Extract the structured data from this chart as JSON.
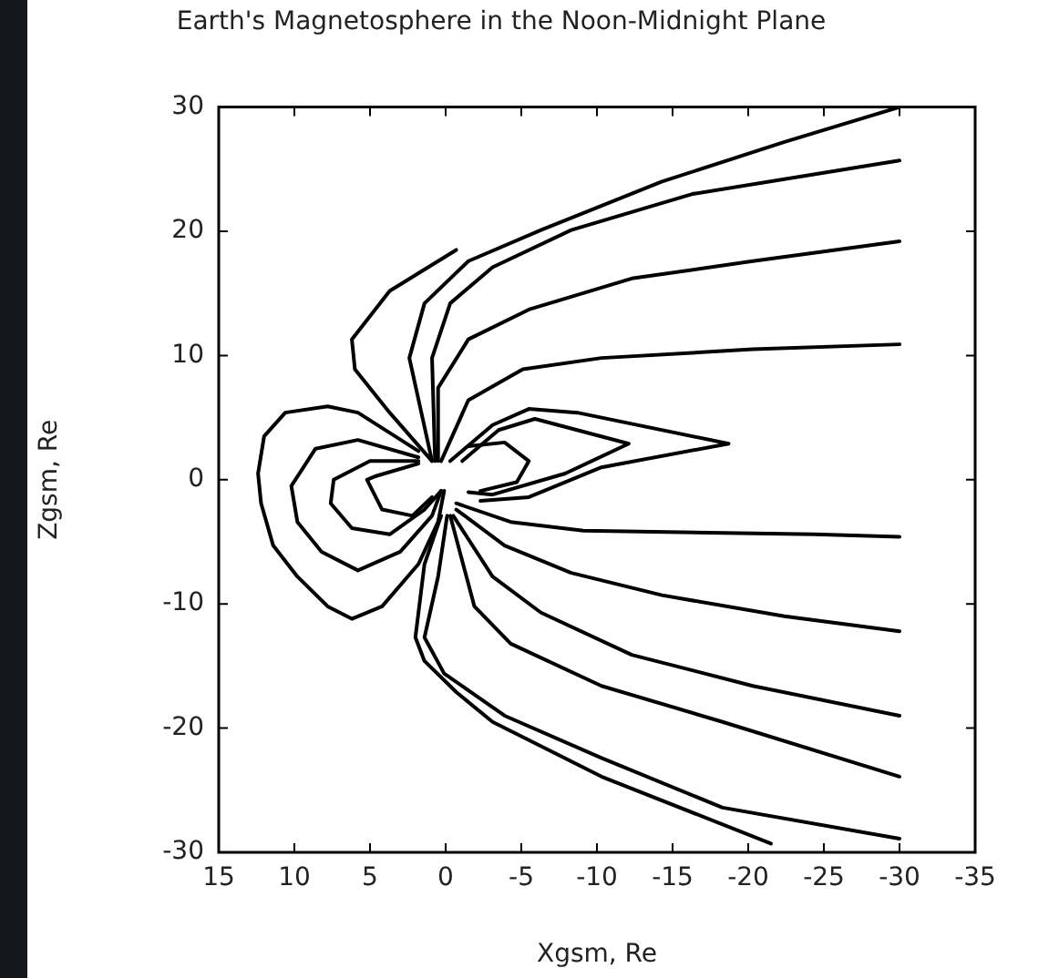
{
  "chart_data": {
    "type": "line",
    "title": "Earth's Magnetosphere in the Noon-Midnight Plane",
    "xlabel": "Xgsm, Re",
    "ylabel": "Zgsm, Re",
    "xlim": [
      15,
      -35
    ],
    "ylim": [
      -30,
      30
    ],
    "xticks": [
      15,
      10,
      5,
      0,
      -5,
      -10,
      -15,
      -20,
      -25,
      -30,
      -35
    ],
    "yticks": [
      -30,
      -20,
      -10,
      0,
      10,
      20,
      30
    ],
    "grid": false,
    "legend": false,
    "marker": "none",
    "line_style": "solid",
    "series": [
      {
        "color": "#000000",
        "x": [
          0.9,
          3.7,
          6.0,
          6.2,
          3.7,
          -0.7
        ],
        "values": [
          1.5,
          5.4,
          8.9,
          11.3,
          15.2,
          18.5
        ]
      },
      {
        "color": "#000000",
        "x": [
          0.9,
          2.4,
          1.4,
          -1.5,
          -6.3,
          -14.3,
          -22.4,
          -30
        ],
        "values": [
          1.5,
          9.8,
          14.2,
          17.6,
          20.1,
          24,
          27.2,
          30
        ]
      },
      {
        "color": "#000000",
        "x": [
          0.7,
          0.9,
          -0.3,
          -3.1,
          -8.3,
          -16.3,
          -30
        ],
        "values": [
          1.5,
          9.8,
          14.2,
          17.1,
          20.1,
          23,
          25.7
        ]
      },
      {
        "color": "#000000",
        "x": [
          0.5,
          0.5,
          -1.5,
          -5.5,
          -12.3,
          -20.3,
          -30
        ],
        "values": [
          1.5,
          7.4,
          11.3,
          13.7,
          16.2,
          17.6,
          19.2
        ]
      },
      {
        "color": "#000000",
        "x": [
          0.3,
          -1.5,
          -5.1,
          -10.3,
          -20.3,
          -30
        ],
        "values": [
          1.5,
          6.4,
          8.9,
          9.8,
          10.5,
          10.9
        ]
      },
      {
        "color": "#000000",
        "x": [
          -0.3,
          -3.1,
          -5.5,
          -8.7,
          -18.7,
          -10.3,
          -5.5,
          -2.3
        ],
        "values": [
          1.5,
          4.4,
          5.7,
          5.4,
          2.9,
          1,
          -1.4,
          -1.7
        ]
      },
      {
        "color": "#000000",
        "x": [
          -1.1,
          -3.5,
          -5.9,
          -12.1,
          -7.9,
          -3.1,
          -1.5
        ],
        "values": [
          1.5,
          4,
          4.9,
          2.9,
          0.5,
          -1.2,
          -1
        ]
      },
      {
        "color": "#000000",
        "x": [
          -1.5,
          -3.9,
          -5.5,
          -4.7,
          -2.3
        ],
        "values": [
          2.7,
          3,
          1.5,
          -0.2,
          -0.9
        ]
      },
      {
        "color": "#000000",
        "x": [
          1.8,
          5.8,
          7.8,
          10.6,
          12,
          12.4,
          12.2,
          11.4,
          9.8,
          7.8,
          6.2,
          4.2,
          1.8,
          0.5,
          0.1
        ],
        "values": [
          2.3,
          5.4,
          5.9,
          5.4,
          3.5,
          0.5,
          -1.9,
          -5.3,
          -7.8,
          -10.2,
          -11.2,
          -10.2,
          -6.8,
          -3.4,
          -0.9
        ]
      },
      {
        "color": "#000000",
        "x": [
          1.8,
          5.8,
          8.6,
          10.2,
          9.8,
          8.2,
          5.8,
          3,
          0.9,
          0.3
        ],
        "values": [
          1.8,
          3.2,
          2.5,
          -0.5,
          -3.4,
          -5.8,
          -7.3,
          -5.8,
          -2.9,
          -0.9
        ]
      },
      {
        "color": "#000000",
        "x": [
          1.8,
          5,
          7.4,
          7.6,
          6.2,
          3.7,
          1.4,
          0.3
        ],
        "values": [
          1.5,
          1.5,
          0,
          -1.9,
          -3.9,
          -4.4,
          -2.4,
          -0.9
        ]
      },
      {
        "color": "#000000",
        "x": [
          1.8,
          4.6,
          5.2,
          4.2,
          2.2,
          0.9
        ],
        "values": [
          1.3,
          0.3,
          0,
          -2.4,
          -2.9,
          -1.4
        ]
      },
      {
        "color": "#000000",
        "x": [
          -0.7,
          -4.3,
          -9.1,
          -24.4,
          -30
        ],
        "values": [
          -1.9,
          -3.4,
          -4.1,
          -4.4,
          -4.6
        ]
      },
      {
        "color": "#000000",
        "x": [
          -0.7,
          -3.9,
          -8.3,
          -14.3,
          -22.4,
          -30
        ],
        "values": [
          -2.4,
          -5.3,
          -7.5,
          -9.3,
          -11,
          -12.2
        ]
      },
      {
        "color": "#000000",
        "x": [
          -0.5,
          -3.1,
          -6.3,
          -12.3,
          -20.3,
          -30
        ],
        "values": [
          -2.9,
          -7.8,
          -10.7,
          -14.1,
          -16.6,
          -19
        ]
      },
      {
        "color": "#000000",
        "x": [
          -0.3,
          -1.9,
          -4.3,
          -10.3,
          -18.3,
          -30
        ],
        "values": [
          -2.9,
          -10.2,
          -13.2,
          -16.6,
          -19.5,
          -23.9
        ]
      },
      {
        "color": "#000000",
        "x": [
          -0.1,
          0.5,
          1.4,
          0.1,
          -3.9,
          -10.3,
          -18.3,
          -30
        ],
        "values": [
          -2.9,
          -7.8,
          -12.7,
          -15.6,
          -19,
          -22.4,
          -26.4,
          -28.9
        ]
      },
      {
        "color": "#000000",
        "x": [
          0.3,
          1.4,
          2,
          1.4,
          -0.7,
          -3.1,
          -10.3,
          -21.5
        ],
        "values": [
          -2.9,
          -6.8,
          -12.7,
          -14.6,
          -17.1,
          -19.5,
          -23.9,
          -29.3
        ]
      }
    ]
  }
}
